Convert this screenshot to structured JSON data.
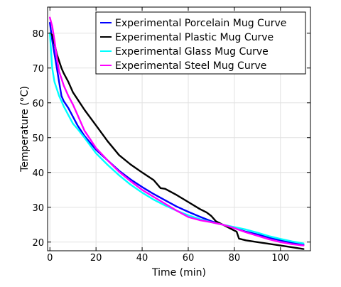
{
  "chart_data": {
    "type": "line",
    "xlabel": "Time (min)",
    "ylabel": "Temperature (°C)",
    "xlim": [
      -1,
      113
    ],
    "ylim": [
      17.5,
      87.5
    ],
    "xticks": [
      0,
      20,
      40,
      60,
      80,
      100
    ],
    "yticks": [
      20,
      30,
      40,
      50,
      60,
      70,
      80
    ],
    "grid": true,
    "legend_position": "top-right",
    "series": [
      {
        "name": "Experimental Porcelain Mug Curve",
        "color": "#0000ff",
        "x": [
          0,
          1,
          2,
          3,
          4,
          5,
          6,
          8,
          10,
          12,
          15,
          20,
          25,
          30,
          35,
          40,
          45,
          50,
          55,
          60,
          65,
          70,
          75,
          80,
          85,
          90,
          95,
          100,
          105,
          110
        ],
        "y": [
          83,
          78,
          74,
          70,
          66,
          62,
          60.5,
          58.5,
          56,
          53.5,
          50.5,
          46.5,
          43.5,
          40.5,
          38,
          35.8,
          33.8,
          32,
          30.2,
          28.7,
          27.3,
          26,
          25,
          24,
          23,
          22.2,
          21.3,
          20.5,
          19.8,
          19.2
        ]
      },
      {
        "name": "Experimental Plastic Mug Curve",
        "color": "#000000",
        "x": [
          0,
          1,
          2,
          3,
          4,
          5,
          6,
          8,
          10,
          12,
          15,
          20,
          25,
          30,
          35,
          40,
          45,
          48,
          50,
          55,
          60,
          65,
          68,
          70,
          72,
          75,
          80,
          81,
          82,
          85,
          90,
          95,
          100,
          105,
          110
        ],
        "y": [
          80,
          79.5,
          77,
          74,
          72,
          70,
          68.5,
          66,
          63,
          61,
          58,
          53.5,
          49,
          45,
          42.3,
          40,
          37.8,
          35.5,
          35.3,
          33.5,
          31.5,
          29.5,
          28.5,
          27.5,
          26,
          25,
          23.3,
          23,
          21,
          20.5,
          20,
          19.5,
          19,
          18.5,
          18
        ]
      },
      {
        "name": "Experimental Glass Mug Curve",
        "color": "#00ffff",
        "x": [
          0,
          1,
          2,
          3,
          4,
          5,
          6,
          8,
          10,
          12,
          15,
          20,
          25,
          30,
          35,
          40,
          45,
          50,
          55,
          60,
          65,
          70,
          75,
          80,
          85,
          90,
          95,
          100,
          105,
          110
        ],
        "y": [
          80,
          70,
          66,
          64,
          62,
          60.5,
          59,
          56.5,
          54,
          52.5,
          50,
          45.5,
          42.2,
          39.2,
          36.5,
          34.2,
          32.2,
          30.5,
          29,
          27.7,
          26.6,
          25.7,
          25,
          24.3,
          23.6,
          22.7,
          21.7,
          20.9,
          20.2,
          19.6
        ]
      },
      {
        "name": "Experimental Steel Mug Curve",
        "color": "#ff00ff",
        "x": [
          0,
          1,
          2,
          3,
          4,
          5,
          6,
          8,
          10,
          12,
          15,
          20,
          25,
          30,
          35,
          40,
          45,
          50,
          55,
          60,
          65,
          70,
          75,
          80,
          85,
          90,
          95,
          100,
          105,
          110
        ],
        "y": [
          84.5,
          82,
          78,
          73,
          69,
          67,
          65,
          62,
          59.5,
          56.5,
          52,
          47,
          43.5,
          40.2,
          37.5,
          35,
          33,
          31,
          29,
          27.2,
          26.3,
          25.7,
          25,
          24,
          22.8,
          21.8,
          20.8,
          20,
          19.4,
          19
        ]
      }
    ]
  }
}
